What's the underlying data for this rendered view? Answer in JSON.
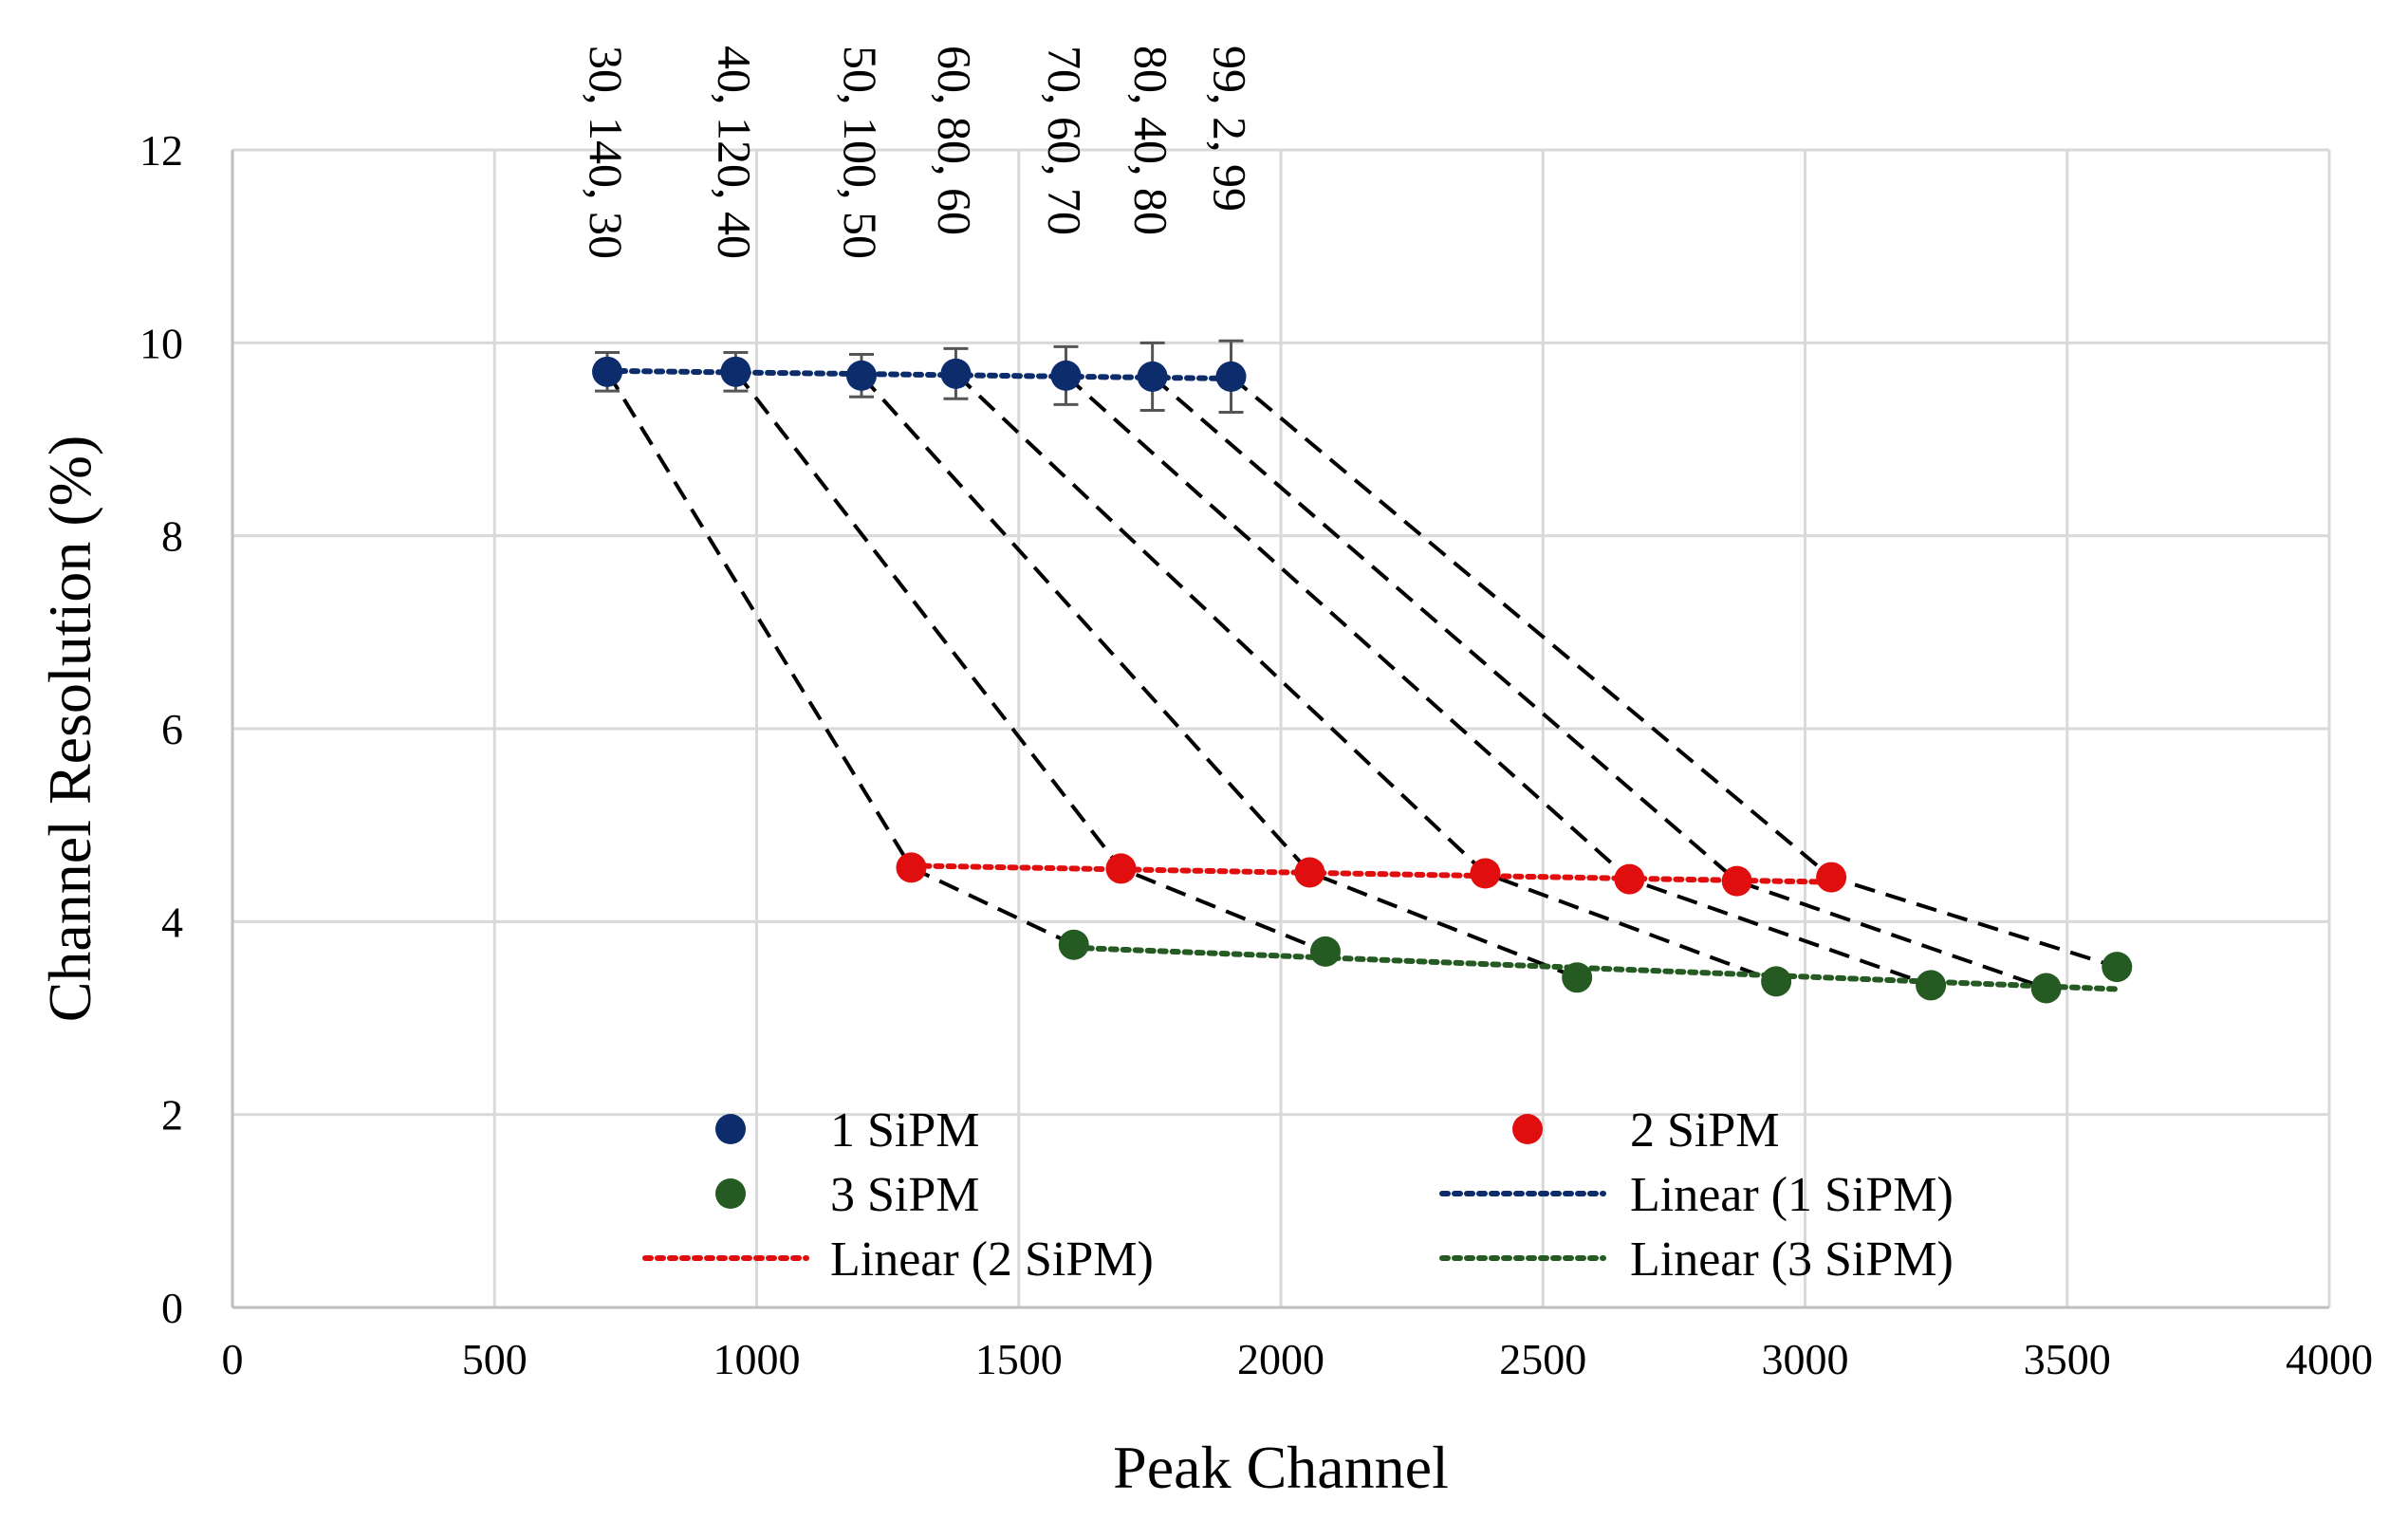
{
  "chart_data": {
    "type": "scatter",
    "title": "",
    "xlabel": "Peak Channel",
    "ylabel": "Channel Resolution (%)",
    "xlim": [
      0,
      4000
    ],
    "ylim": [
      0,
      12
    ],
    "xticks": [
      0,
      500,
      1000,
      1500,
      2000,
      2500,
      3000,
      3500,
      4000
    ],
    "yticks": [
      0,
      2,
      4,
      6,
      8,
      10,
      12
    ],
    "xtick_labels": [
      "0",
      "500",
      "1000",
      "1500",
      "2000",
      "2500",
      "3000",
      "3500",
      "4000"
    ],
    "ytick_labels": [
      "0",
      "2",
      "4",
      "6",
      "8",
      "10",
      "12"
    ],
    "grid": true,
    "legend_position": "bottom-inside",
    "series": [
      {
        "name": "1 SiPM",
        "color": "#0c2c6b",
        "x": [
          715,
          960,
          1200,
          1380,
          1590,
          1755,
          1905
        ],
        "y": [
          9.7,
          9.7,
          9.66,
          9.68,
          9.66,
          9.65,
          9.65
        ],
        "yerr": [
          0.2,
          0.2,
          0.22,
          0.26,
          0.3,
          0.35,
          0.37
        ]
      },
      {
        "name": "2 SiPM",
        "color": "#e00e0e",
        "x": [
          1295,
          1695,
          2055,
          2390,
          2665,
          2870,
          3050
        ],
        "y": [
          4.56,
          4.55,
          4.51,
          4.5,
          4.44,
          4.42,
          4.46
        ]
      },
      {
        "name": "3 SiPM",
        "color": "#255a23",
        "x": [
          1605,
          2085,
          2565,
          2945,
          3240,
          3460,
          3595
        ],
        "y": [
          3.76,
          3.69,
          3.42,
          3.38,
          3.34,
          3.31,
          3.53
        ]
      }
    ],
    "trendlines": [
      {
        "name": "Linear (1 SiPM)",
        "color": "#0c2c6b",
        "x": [
          715,
          1905
        ],
        "y": [
          9.71,
          9.63
        ]
      },
      {
        "name": "Linear (2 SiPM)",
        "color": "#e00e0e",
        "x": [
          1295,
          3050
        ],
        "y": [
          4.58,
          4.41
        ]
      },
      {
        "name": "Linear (3 SiPM)",
        "color": "#255a23",
        "x": [
          1605,
          3595
        ],
        "y": [
          3.73,
          3.3
        ]
      }
    ],
    "annotations": [
      "30, 140, 30",
      "40, 120, 40",
      "50, 100, 50",
      "60, 80, 60",
      "70, 60, 70",
      "80, 40, 80",
      "99, 2, 99"
    ],
    "legend": [
      {
        "label": "1 SiPM",
        "kind": "marker",
        "color": "#0c2c6b"
      },
      {
        "label": "2 SiPM",
        "kind": "marker",
        "color": "#e00e0e"
      },
      {
        "label": "3 SiPM",
        "kind": "marker",
        "color": "#255a23"
      },
      {
        "label": "Linear (1 SiPM)",
        "kind": "line",
        "color": "#0c2c6b"
      },
      {
        "label": "Linear (2 SiPM)",
        "kind": "line",
        "color": "#e00e0e"
      },
      {
        "label": "Linear (3 SiPM)",
        "kind": "line",
        "color": "#255a23"
      }
    ],
    "connector_color": "#000000"
  }
}
